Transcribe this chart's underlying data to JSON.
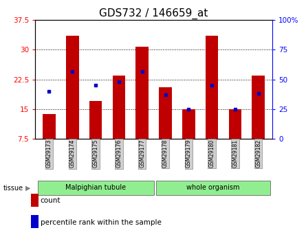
{
  "title": "GDS732 / 146659_at",
  "samples": [
    "GSM29173",
    "GSM29174",
    "GSM29175",
    "GSM29176",
    "GSM29177",
    "GSM29178",
    "GSM29179",
    "GSM29180",
    "GSM29181",
    "GSM29182"
  ],
  "count_values": [
    13.8,
    33.5,
    17.0,
    23.5,
    30.8,
    20.5,
    15.0,
    33.5,
    15.0,
    23.5
  ],
  "percentile_values": [
    40,
    57,
    45,
    48,
    57,
    37,
    25,
    45,
    25,
    38
  ],
  "ylim_left": [
    7.5,
    37.5
  ],
  "yticks_left": [
    7.5,
    15,
    22.5,
    30,
    37.5
  ],
  "ytick_labels_left": [
    "7.5",
    "15",
    "22.5",
    "30",
    "37.5"
  ],
  "ylim_right": [
    0,
    100
  ],
  "yticks_right": [
    0,
    25,
    50,
    75,
    100
  ],
  "ytick_labels_right": [
    "0",
    "25",
    "50",
    "75",
    "100%"
  ],
  "bar_color": "#c00000",
  "dot_color": "#0000cc",
  "bar_width": 0.55,
  "tissue_labels": [
    "Malpighian tubule",
    "whole organism"
  ],
  "tissue_color": "#90ee90",
  "tissue_label": "tissue",
  "legend_count_label": "count",
  "legend_pct_label": "percentile rank within the sample",
  "grid_color": "#000000",
  "plot_bg_color": "#ffffff",
  "tick_label_bg": "#d0d0d0",
  "title_fontsize": 11,
  "axis_fontsize": 7.5,
  "tick_fontsize": 5.5,
  "legend_fontsize": 7.5
}
